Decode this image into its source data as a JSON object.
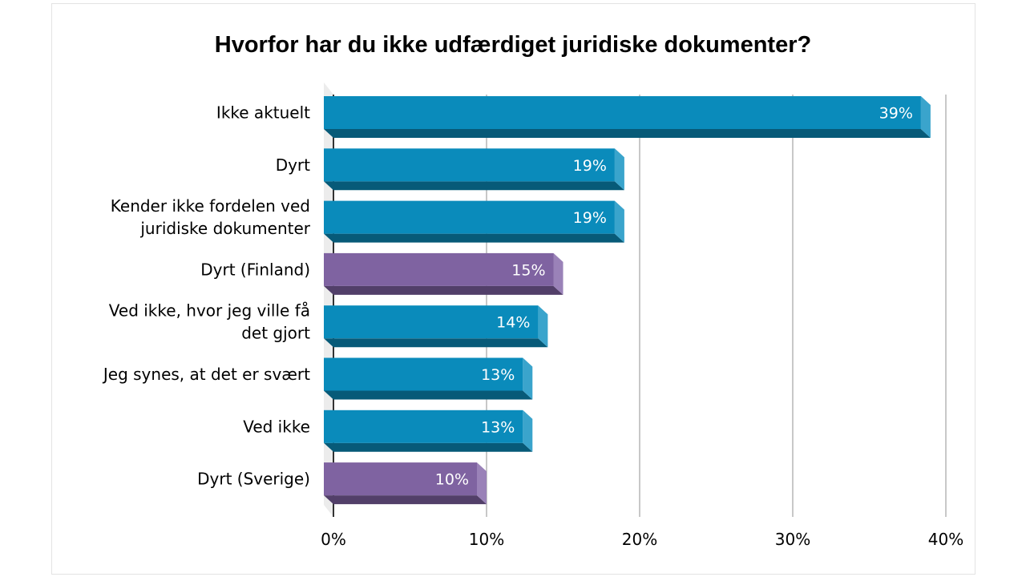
{
  "chart_data": {
    "type": "bar",
    "orientation": "horizontal",
    "title": "Hvorfor har du ikke udfærdiget juridiske dokumenter?",
    "categories": [
      "Ikke aktuelt",
      "Dyrt",
      "Kender ikke fordelen ved juridiske dokumenter",
      "Dyrt (Finland)",
      "Ved ikke, hvor jeg ville få det gjort",
      "Jeg synes, at det er svært",
      "Ved ikke",
      "Dyrt (Sverige)"
    ],
    "category_lines": [
      [
        "Ikke aktuelt"
      ],
      [
        "Dyrt"
      ],
      [
        "Kender ikke fordelen ved",
        "juridiske dokumenter"
      ],
      [
        "Dyrt (Finland)"
      ],
      [
        "Ved ikke, hvor jeg ville få",
        "det gjort"
      ],
      [
        "Jeg synes, at det er svært"
      ],
      [
        "Ved ikke"
      ],
      [
        "Dyrt (Sverige)"
      ]
    ],
    "values": [
      39,
      19,
      19,
      15,
      14,
      13,
      13,
      10
    ],
    "data_labels": [
      "39%",
      "19%",
      "19%",
      "15%",
      "14%",
      "13%",
      "13%",
      "10%"
    ],
    "highlight": [
      false,
      false,
      false,
      true,
      false,
      false,
      false,
      true
    ],
    "xlim": [
      0,
      40
    ],
    "xticks": [
      0,
      10,
      20,
      30,
      40
    ],
    "xtick_labels": [
      "0%",
      "10%",
      "20%",
      "30%",
      "40%"
    ],
    "grid": true,
    "style": "3d",
    "colors": {
      "primary": "#0a8bbb",
      "primary_dark": "#075a78",
      "primary_side": "#3aa4cc",
      "highlight": "#7f63a1",
      "highlight_dark": "#523f69",
      "highlight_side": "#9a82b8",
      "grid": "#c8c8c8"
    }
  }
}
